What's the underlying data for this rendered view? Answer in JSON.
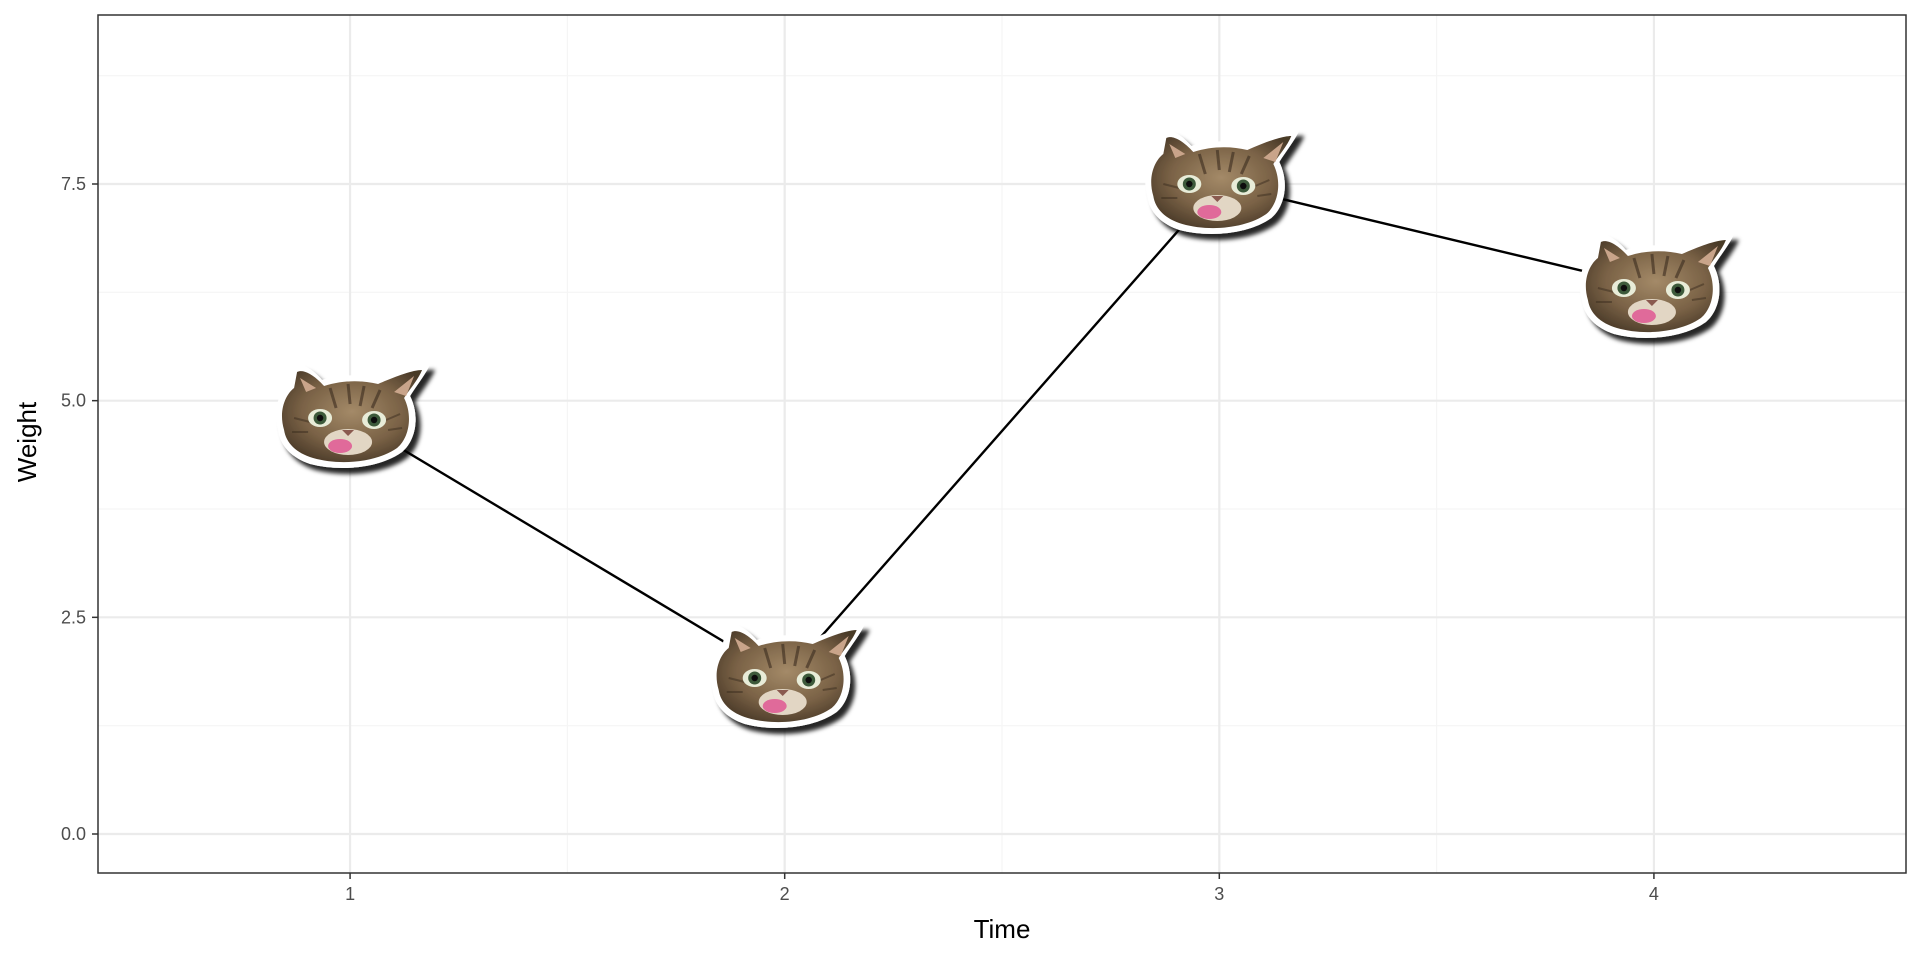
{
  "chart_data": {
    "type": "line",
    "title": "",
    "xlabel": "Time",
    "ylabel": "Weight",
    "x": [
      1,
      2,
      3,
      4
    ],
    "series": [
      {
        "values": [
          4.8,
          1.8,
          7.5,
          6.3
        ],
        "marker": "cat-face-icon",
        "color": "#000000"
      }
    ],
    "xlim": [
      0.42,
      4.58
    ],
    "ylim": [
      -0.45,
      9.45
    ],
    "x_ticks": [
      1,
      2,
      3,
      4
    ],
    "x_tick_labels": [
      "1",
      "2",
      "3",
      "4"
    ],
    "y_ticks": [
      0,
      2.5,
      5,
      7.5
    ],
    "y_tick_labels": [
      "0.0",
      "2.5",
      "5.0",
      "7.5"
    ],
    "grid": true,
    "legend": "none",
    "panel_border": true,
    "colors": {
      "background": "#ffffff",
      "grid_major": "#ebebeb",
      "grid_minor": "#f5f5f5",
      "border": "#333333",
      "line": "#000000",
      "axis_text": "#4d4d4d"
    }
  }
}
